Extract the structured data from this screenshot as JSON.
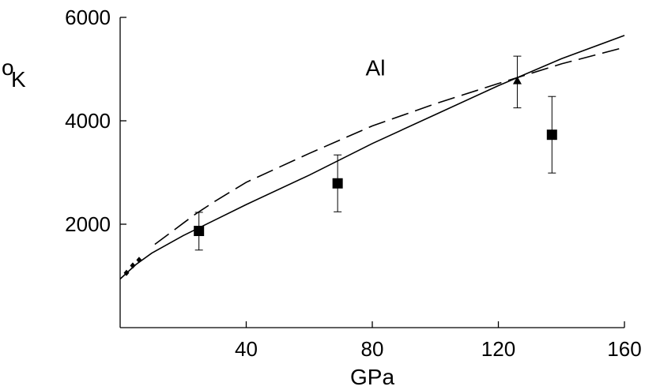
{
  "chart_data": {
    "type": "line",
    "title": "",
    "xlabel": "GPa",
    "ylabel_sup": "o",
    "ylabel_main": "K",
    "annotation": "Al",
    "xlim": [
      0,
      160
    ],
    "ylim": [
      0,
      6000
    ],
    "xticks": [
      40,
      80,
      120,
      160
    ],
    "xtick_labels": [
      "40",
      "80",
      "120",
      "160"
    ],
    "yticks": [
      2000,
      4000,
      6000
    ],
    "ytick_labels": [
      "2000",
      "4000",
      "6000"
    ],
    "grid": false,
    "series": [
      {
        "style": "solid",
        "x": [
          0,
          5,
          10,
          20,
          30,
          40,
          60,
          80,
          100,
          120,
          140,
          160
        ],
        "y": [
          940,
          1220,
          1440,
          1780,
          2080,
          2380,
          2950,
          3560,
          4120,
          4680,
          5200,
          5650
        ]
      },
      {
        "style": "dashed",
        "x": [
          11,
          20,
          24,
          30,
          40,
          60,
          80,
          100,
          120,
          140,
          160
        ],
        "y": [
          1610,
          2020,
          2200,
          2440,
          2810,
          3370,
          3900,
          4330,
          4720,
          5100,
          5420
        ]
      },
      {
        "marker": "diamond",
        "x": [
          2,
          4,
          6
        ],
        "y": [
          1060,
          1200,
          1310
        ]
      },
      {
        "marker": "square",
        "x": [
          25,
          69,
          137
        ],
        "y": [
          1870,
          2790,
          3730
        ],
        "yerr_low": [
          1500,
          2240,
          2990
        ],
        "yerr_high": [
          2230,
          3340,
          4470
        ]
      },
      {
        "marker": "triangle",
        "x": [
          126
        ],
        "y": [
          4770
        ],
        "yerr_low": [
          4250
        ],
        "yerr_high": [
          5250
        ]
      }
    ]
  }
}
